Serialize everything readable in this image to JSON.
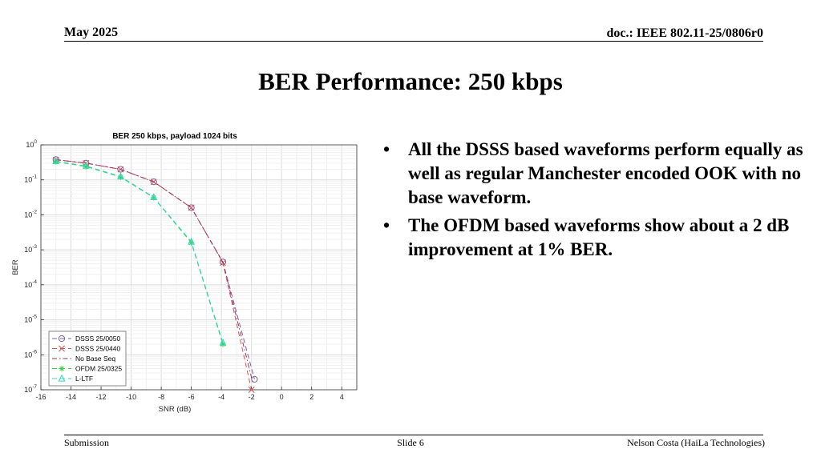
{
  "header": {
    "date": "May 2025",
    "doc": "doc.: IEEE 802.11-25/0806r0"
  },
  "slide_title": "BER Performance: 250 kbps",
  "bullets": [
    "All the DSSS based waveforms perform equally as well as regular Manchester encoded OOK with no base waveform.",
    "The OFDM based waveforms show about a 2 dB improvement at 1% BER."
  ],
  "footer": {
    "left": "Submission",
    "center": "Slide 6",
    "right": "Nelson Costa (HaiLa Technologies)"
  },
  "chart_data": {
    "type": "line",
    "title": "BER 250 kbps, payload 1024 bits",
    "xlabel": "SNR (dB)",
    "ylabel": "BER",
    "xlim": [
      -16,
      5
    ],
    "ylim": [
      1e-07,
      1
    ],
    "yscale": "log",
    "grid": true,
    "legend_position": "bottom-left",
    "x_ticks": [
      "-16",
      "-14",
      "-12",
      "-10",
      "-8",
      "-6",
      "-4",
      "-2",
      "0",
      "2",
      "4"
    ],
    "y_ticks": [
      {
        "base": "10",
        "exp": "0"
      },
      {
        "base": "10",
        "exp": "-1"
      },
      {
        "base": "10",
        "exp": "-2"
      },
      {
        "base": "10",
        "exp": "-3"
      },
      {
        "base": "10",
        "exp": "-4"
      },
      {
        "base": "10",
        "exp": "-5"
      },
      {
        "base": "10",
        "exp": "-6"
      },
      {
        "base": "10",
        "exp": "-7"
      }
    ],
    "series": [
      {
        "name": "DSSS 25/0050",
        "color": "#7b5fa8",
        "dash": "6,4",
        "marker": "circle",
        "x": [
          -15,
          -13,
          -10.7,
          -8.5,
          -6,
          -3.9,
          -1.8
        ],
        "y": [
          0.38,
          0.3,
          0.2,
          0.088,
          0.016,
          0.00045,
          2e-07
        ]
      },
      {
        "name": "DSSS 25/0440",
        "color": "#d9534f",
        "dash": "6,4",
        "marker": "x",
        "x": [
          -15,
          -13,
          -10.7,
          -8.5,
          -6,
          -3.9,
          -2.0
        ],
        "y": [
          0.37,
          0.3,
          0.2,
          0.088,
          0.016,
          0.00043,
          1e-07
        ]
      },
      {
        "name": "No Base Seq",
        "color": "#8e3b5f",
        "dash": "6,3,1.5,3",
        "marker": "none",
        "x": [
          -15,
          -13,
          -10.7,
          -8.5,
          -6,
          -3.9,
          -1.9
        ],
        "y": [
          0.38,
          0.3,
          0.2,
          0.088,
          0.016,
          0.00044,
          1.5e-07
        ]
      },
      {
        "name": "OFDM 25/0325",
        "color": "#39d04a",
        "dash": "6,4",
        "marker": "star",
        "x": [
          -15,
          -13,
          -10.7,
          -8.5,
          -6,
          -3.9
        ],
        "y": [
          0.33,
          0.24,
          0.12,
          0.031,
          0.0016,
          2e-06
        ]
      },
      {
        "name": "L-LTF",
        "color": "#35d6c8",
        "dash": "6,4",
        "marker": "triangle",
        "x": [
          -15,
          -13,
          -10.7,
          -8.5,
          -6,
          -3.9
        ],
        "y": [
          0.34,
          0.25,
          0.125,
          0.032,
          0.0017,
          2.2e-06
        ]
      }
    ]
  }
}
